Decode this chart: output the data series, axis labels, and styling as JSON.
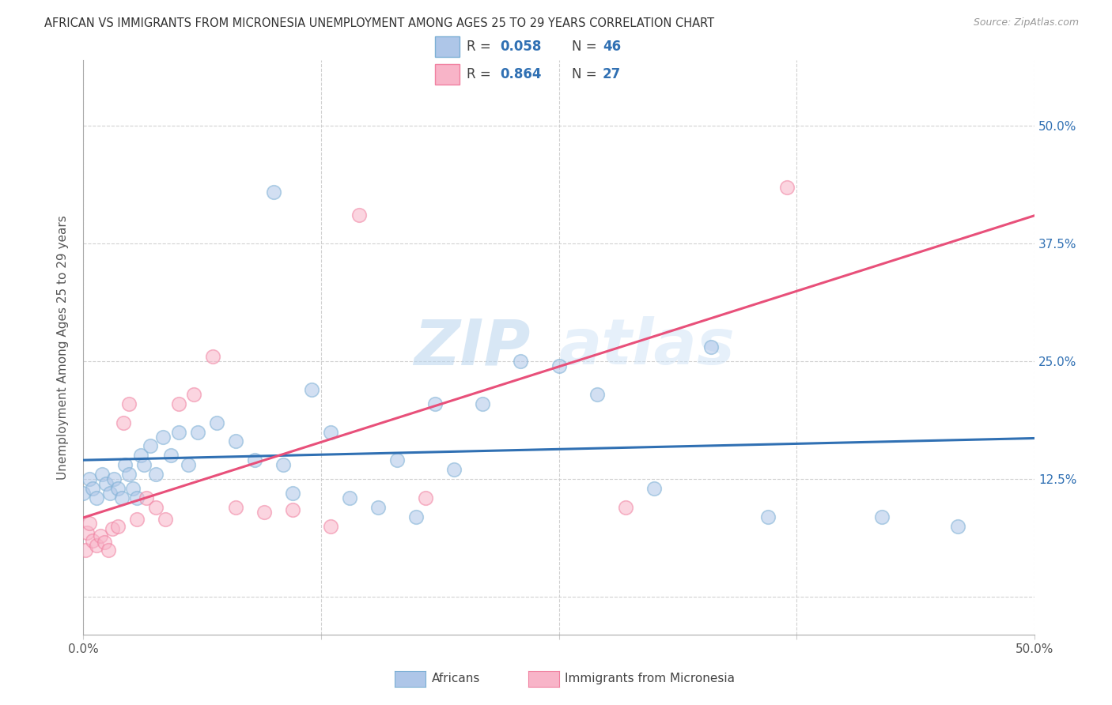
{
  "title": "AFRICAN VS IMMIGRANTS FROM MICRONESIA UNEMPLOYMENT AMONG AGES 25 TO 29 YEARS CORRELATION CHART",
  "source": "Source: ZipAtlas.com",
  "ylabel": "Unemployment Among Ages 25 to 29 years",
  "xlim": [
    0,
    0.5
  ],
  "ylim": [
    -0.04,
    0.57
  ],
  "yticks": [
    0.0,
    0.125,
    0.25,
    0.375,
    0.5
  ],
  "ytick_labels_right": [
    "",
    "12.5%",
    "25.0%",
    "37.5%",
    "50.0%"
  ],
  "xticks": [
    0.0,
    0.125,
    0.25,
    0.375,
    0.5
  ],
  "xtick_labels": [
    "0.0%",
    "",
    "",
    "",
    "50.0%"
  ],
  "legend_r_african": "0.058",
  "legend_n_african": "46",
  "legend_r_micronesia": "0.864",
  "legend_n_micronesia": "27",
  "african_face_color": "#aec6e8",
  "african_edge_color": "#7bafd4",
  "african_line_color": "#3070b3",
  "micronesia_face_color": "#f8b4c8",
  "micronesia_edge_color": "#f080a0",
  "micronesia_line_color": "#e8507a",
  "label_color": "#3070b3",
  "african_x": [
    0.0,
    0.003,
    0.005,
    0.007,
    0.01,
    0.012,
    0.014,
    0.016,
    0.018,
    0.02,
    0.022,
    0.024,
    0.026,
    0.028,
    0.03,
    0.032,
    0.035,
    0.038,
    0.042,
    0.046,
    0.05,
    0.055,
    0.06,
    0.07,
    0.08,
    0.09,
    0.1,
    0.105,
    0.11,
    0.12,
    0.13,
    0.14,
    0.155,
    0.165,
    0.175,
    0.185,
    0.195,
    0.21,
    0.23,
    0.25,
    0.27,
    0.3,
    0.33,
    0.36,
    0.42,
    0.46
  ],
  "african_y": [
    0.11,
    0.125,
    0.115,
    0.105,
    0.13,
    0.12,
    0.11,
    0.125,
    0.115,
    0.105,
    0.14,
    0.13,
    0.115,
    0.105,
    0.15,
    0.14,
    0.16,
    0.13,
    0.17,
    0.15,
    0.175,
    0.14,
    0.175,
    0.185,
    0.165,
    0.145,
    0.43,
    0.14,
    0.11,
    0.22,
    0.175,
    0.105,
    0.095,
    0.145,
    0.085,
    0.205,
    0.135,
    0.205,
    0.25,
    0.245,
    0.215,
    0.115,
    0.265,
    0.085,
    0.085,
    0.075
  ],
  "micronesia_x": [
    0.001,
    0.002,
    0.003,
    0.005,
    0.007,
    0.009,
    0.011,
    0.013,
    0.015,
    0.018,
    0.021,
    0.024,
    0.028,
    0.033,
    0.038,
    0.043,
    0.05,
    0.058,
    0.068,
    0.08,
    0.095,
    0.11,
    0.13,
    0.145,
    0.18,
    0.285,
    0.37
  ],
  "micronesia_y": [
    0.05,
    0.068,
    0.078,
    0.06,
    0.055,
    0.065,
    0.058,
    0.05,
    0.072,
    0.075,
    0.185,
    0.205,
    0.082,
    0.105,
    0.095,
    0.082,
    0.205,
    0.215,
    0.255,
    0.095,
    0.09,
    0.092,
    0.075,
    0.405,
    0.105,
    0.095,
    0.435
  ]
}
